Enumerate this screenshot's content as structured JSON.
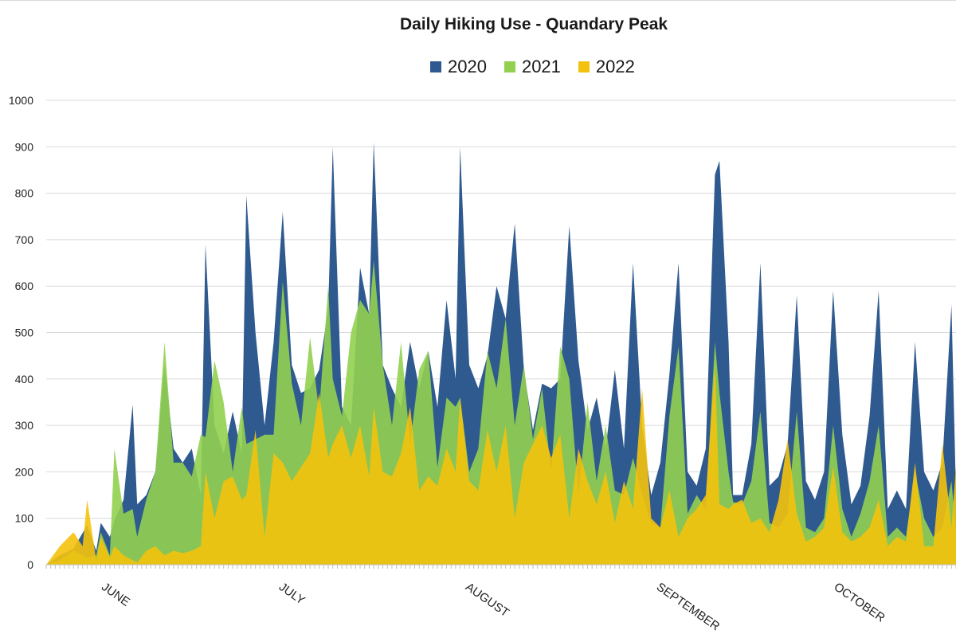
{
  "chart_data": {
    "type": "area",
    "title": "Daily Hiking Use - Quandary Peak",
    "xlabel": "",
    "ylabel": "",
    "ylim": [
      0,
      1000
    ],
    "yticks": [
      0,
      100,
      200,
      300,
      400,
      500,
      600,
      700,
      800,
      900,
      1000
    ],
    "xlim": [
      0,
      200
    ],
    "month_labels": [
      {
        "label": "JUNE",
        "day": 12
      },
      {
        "label": "JULY",
        "day": 51
      },
      {
        "label": "AUGUST",
        "day": 92
      },
      {
        "label": "SEPTEMBER",
        "day": 134
      },
      {
        "label": "OCTOBER",
        "day": 173
      }
    ],
    "series": [
      {
        "name": "2020",
        "color": "#2f5a8f",
        "points": [
          [
            0,
            0
          ],
          [
            3,
            20
          ],
          [
            6,
            35
          ],
          [
            9,
            85
          ],
          [
            11,
            30
          ],
          [
            12,
            90
          ],
          [
            14,
            60
          ],
          [
            15,
            95
          ],
          [
            17,
            140
          ],
          [
            19,
            345
          ],
          [
            20,
            130
          ],
          [
            22,
            150
          ],
          [
            24,
            200
          ],
          [
            26,
            430
          ],
          [
            28,
            250
          ],
          [
            30,
            220
          ],
          [
            32,
            250
          ],
          [
            34,
            150
          ],
          [
            35,
            690
          ],
          [
            37,
            300
          ],
          [
            39,
            240
          ],
          [
            41,
            330
          ],
          [
            43,
            240
          ],
          [
            44,
            795
          ],
          [
            46,
            500
          ],
          [
            48,
            300
          ],
          [
            50,
            480
          ],
          [
            52,
            760
          ],
          [
            54,
            430
          ],
          [
            56,
            370
          ],
          [
            58,
            380
          ],
          [
            60,
            420
          ],
          [
            62,
            550
          ],
          [
            63,
            900
          ],
          [
            65,
            340
          ],
          [
            67,
            300
          ],
          [
            69,
            640
          ],
          [
            71,
            540
          ],
          [
            72,
            910
          ],
          [
            74,
            430
          ],
          [
            76,
            380
          ],
          [
            78,
            340
          ],
          [
            80,
            480
          ],
          [
            82,
            380
          ],
          [
            84,
            460
          ],
          [
            86,
            340
          ],
          [
            88,
            570
          ],
          [
            90,
            400
          ],
          [
            91,
            900
          ],
          [
            93,
            430
          ],
          [
            95,
            380
          ],
          [
            97,
            450
          ],
          [
            99,
            600
          ],
          [
            101,
            530
          ],
          [
            103,
            735
          ],
          [
            105,
            420
          ],
          [
            107,
            290
          ],
          [
            109,
            390
          ],
          [
            111,
            380
          ],
          [
            113,
            400
          ],
          [
            115,
            730
          ],
          [
            117,
            440
          ],
          [
            119,
            290
          ],
          [
            121,
            360
          ],
          [
            123,
            250
          ],
          [
            125,
            420
          ],
          [
            127,
            250
          ],
          [
            129,
            650
          ],
          [
            131,
            300
          ],
          [
            133,
            150
          ],
          [
            135,
            220
          ],
          [
            137,
            410
          ],
          [
            139,
            650
          ],
          [
            141,
            200
          ],
          [
            143,
            170
          ],
          [
            145,
            250
          ],
          [
            147,
            840
          ],
          [
            148,
            870
          ],
          [
            150,
            480
          ],
          [
            151,
            150
          ],
          [
            153,
            150
          ],
          [
            155,
            260
          ],
          [
            157,
            650
          ],
          [
            159,
            170
          ],
          [
            161,
            190
          ],
          [
            163,
            260
          ],
          [
            165,
            580
          ],
          [
            167,
            180
          ],
          [
            169,
            140
          ],
          [
            171,
            200
          ],
          [
            173,
            590
          ],
          [
            175,
            280
          ],
          [
            177,
            130
          ],
          [
            179,
            170
          ],
          [
            181,
            320
          ],
          [
            183,
            590
          ],
          [
            185,
            120
          ],
          [
            187,
            160
          ],
          [
            189,
            120
          ],
          [
            191,
            480
          ],
          [
            193,
            200
          ],
          [
            195,
            160
          ],
          [
            197,
            220
          ],
          [
            199,
            560
          ],
          [
            200,
            150
          ]
        ]
      },
      {
        "name": "2021",
        "color": "#92d050",
        "points": [
          [
            0,
            0
          ],
          [
            3,
            10
          ],
          [
            6,
            30
          ],
          [
            9,
            15
          ],
          [
            11,
            20
          ],
          [
            12,
            70
          ],
          [
            14,
            20
          ],
          [
            15,
            250
          ],
          [
            17,
            110
          ],
          [
            19,
            120
          ],
          [
            20,
            60
          ],
          [
            22,
            140
          ],
          [
            24,
            200
          ],
          [
            26,
            480
          ],
          [
            28,
            220
          ],
          [
            30,
            220
          ],
          [
            32,
            190
          ],
          [
            34,
            280
          ],
          [
            35,
            275
          ],
          [
            37,
            440
          ],
          [
            39,
            350
          ],
          [
            41,
            200
          ],
          [
            43,
            340
          ],
          [
            44,
            260
          ],
          [
            46,
            270
          ],
          [
            48,
            280
          ],
          [
            50,
            280
          ],
          [
            52,
            610
          ],
          [
            54,
            390
          ],
          [
            56,
            300
          ],
          [
            58,
            490
          ],
          [
            60,
            330
          ],
          [
            62,
            600
          ],
          [
            63,
            400
          ],
          [
            65,
            320
          ],
          [
            67,
            500
          ],
          [
            69,
            570
          ],
          [
            71,
            540
          ],
          [
            72,
            655
          ],
          [
            74,
            430
          ],
          [
            76,
            300
          ],
          [
            78,
            480
          ],
          [
            80,
            260
          ],
          [
            82,
            420
          ],
          [
            84,
            460
          ],
          [
            86,
            210
          ],
          [
            88,
            360
          ],
          [
            90,
            340
          ],
          [
            91,
            360
          ],
          [
            93,
            200
          ],
          [
            95,
            250
          ],
          [
            97,
            460
          ],
          [
            99,
            380
          ],
          [
            101,
            530
          ],
          [
            103,
            300
          ],
          [
            105,
            430
          ],
          [
            107,
            270
          ],
          [
            109,
            380
          ],
          [
            111,
            200
          ],
          [
            113,
            470
          ],
          [
            115,
            400
          ],
          [
            117,
            150
          ],
          [
            119,
            350
          ],
          [
            121,
            180
          ],
          [
            123,
            300
          ],
          [
            125,
            160
          ],
          [
            127,
            150
          ],
          [
            129,
            230
          ],
          [
            131,
            150
          ],
          [
            133,
            90
          ],
          [
            135,
            80
          ],
          [
            137,
            320
          ],
          [
            139,
            470
          ],
          [
            141,
            110
          ],
          [
            143,
            150
          ],
          [
            145,
            120
          ],
          [
            147,
            480
          ],
          [
            148,
            370
          ],
          [
            150,
            200
          ],
          [
            151,
            135
          ],
          [
            153,
            130
          ],
          [
            155,
            180
          ],
          [
            157,
            330
          ],
          [
            159,
            90
          ],
          [
            161,
            80
          ],
          [
            163,
            110
          ],
          [
            165,
            330
          ],
          [
            167,
            80
          ],
          [
            169,
            70
          ],
          [
            171,
            100
          ],
          [
            173,
            300
          ],
          [
            175,
            120
          ],
          [
            177,
            60
          ],
          [
            179,
            110
          ],
          [
            181,
            180
          ],
          [
            183,
            300
          ],
          [
            185,
            60
          ],
          [
            187,
            80
          ],
          [
            189,
            60
          ],
          [
            191,
            200
          ],
          [
            193,
            100
          ],
          [
            195,
            60
          ],
          [
            197,
            80
          ],
          [
            199,
            180
          ],
          [
            200,
            70
          ]
        ]
      },
      {
        "name": "2022",
        "color": "#f4c20d",
        "points": [
          [
            0,
            0
          ],
          [
            3,
            40
          ],
          [
            5,
            60
          ],
          [
            6,
            70
          ],
          [
            8,
            40
          ],
          [
            9,
            140
          ],
          [
            11,
            10
          ],
          [
            12,
            60
          ],
          [
            14,
            15
          ],
          [
            15,
            40
          ],
          [
            17,
            20
          ],
          [
            19,
            10
          ],
          [
            20,
            5
          ],
          [
            22,
            30
          ],
          [
            24,
            40
          ],
          [
            26,
            20
          ],
          [
            28,
            30
          ],
          [
            30,
            25
          ],
          [
            32,
            30
          ],
          [
            34,
            40
          ],
          [
            35,
            200
          ],
          [
            37,
            100
          ],
          [
            39,
            180
          ],
          [
            41,
            190
          ],
          [
            43,
            140
          ],
          [
            44,
            150
          ],
          [
            46,
            290
          ],
          [
            48,
            60
          ],
          [
            50,
            240
          ],
          [
            52,
            220
          ],
          [
            54,
            180
          ],
          [
            56,
            210
          ],
          [
            58,
            240
          ],
          [
            60,
            370
          ],
          [
            62,
            230
          ],
          [
            63,
            260
          ],
          [
            65,
            300
          ],
          [
            67,
            230
          ],
          [
            69,
            300
          ],
          [
            71,
            190
          ],
          [
            72,
            340
          ],
          [
            74,
            200
          ],
          [
            76,
            190
          ],
          [
            78,
            240
          ],
          [
            80,
            340
          ],
          [
            82,
            160
          ],
          [
            84,
            190
          ],
          [
            86,
            170
          ],
          [
            88,
            250
          ],
          [
            90,
            200
          ],
          [
            91,
            360
          ],
          [
            93,
            180
          ],
          [
            95,
            160
          ],
          [
            97,
            290
          ],
          [
            99,
            200
          ],
          [
            101,
            300
          ],
          [
            103,
            100
          ],
          [
            105,
            220
          ],
          [
            107,
            260
          ],
          [
            109,
            300
          ],
          [
            111,
            230
          ],
          [
            113,
            280
          ],
          [
            115,
            100
          ],
          [
            117,
            250
          ],
          [
            119,
            180
          ],
          [
            121,
            130
          ],
          [
            123,
            200
          ],
          [
            125,
            90
          ],
          [
            127,
            180
          ],
          [
            129,
            120
          ],
          [
            131,
            380
          ],
          [
            133,
            100
          ],
          [
            135,
            80
          ],
          [
            137,
            160
          ],
          [
            139,
            60
          ],
          [
            141,
            100
          ],
          [
            143,
            120
          ],
          [
            145,
            150
          ],
          [
            147,
            430
          ],
          [
            148,
            130
          ],
          [
            150,
            120
          ],
          [
            151,
            130
          ],
          [
            153,
            140
          ],
          [
            155,
            90
          ],
          [
            157,
            100
          ],
          [
            159,
            70
          ],
          [
            161,
            140
          ],
          [
            163,
            270
          ],
          [
            165,
            110
          ],
          [
            167,
            50
          ],
          [
            169,
            60
          ],
          [
            171,
            80
          ],
          [
            173,
            210
          ],
          [
            175,
            70
          ],
          [
            177,
            50
          ],
          [
            179,
            60
          ],
          [
            181,
            80
          ],
          [
            183,
            140
          ],
          [
            185,
            40
          ],
          [
            187,
            60
          ],
          [
            189,
            50
          ],
          [
            191,
            220
          ],
          [
            193,
            40
          ],
          [
            195,
            40
          ],
          [
            197,
            260
          ],
          [
            199,
            80
          ],
          [
            200,
            210
          ]
        ]
      }
    ]
  }
}
